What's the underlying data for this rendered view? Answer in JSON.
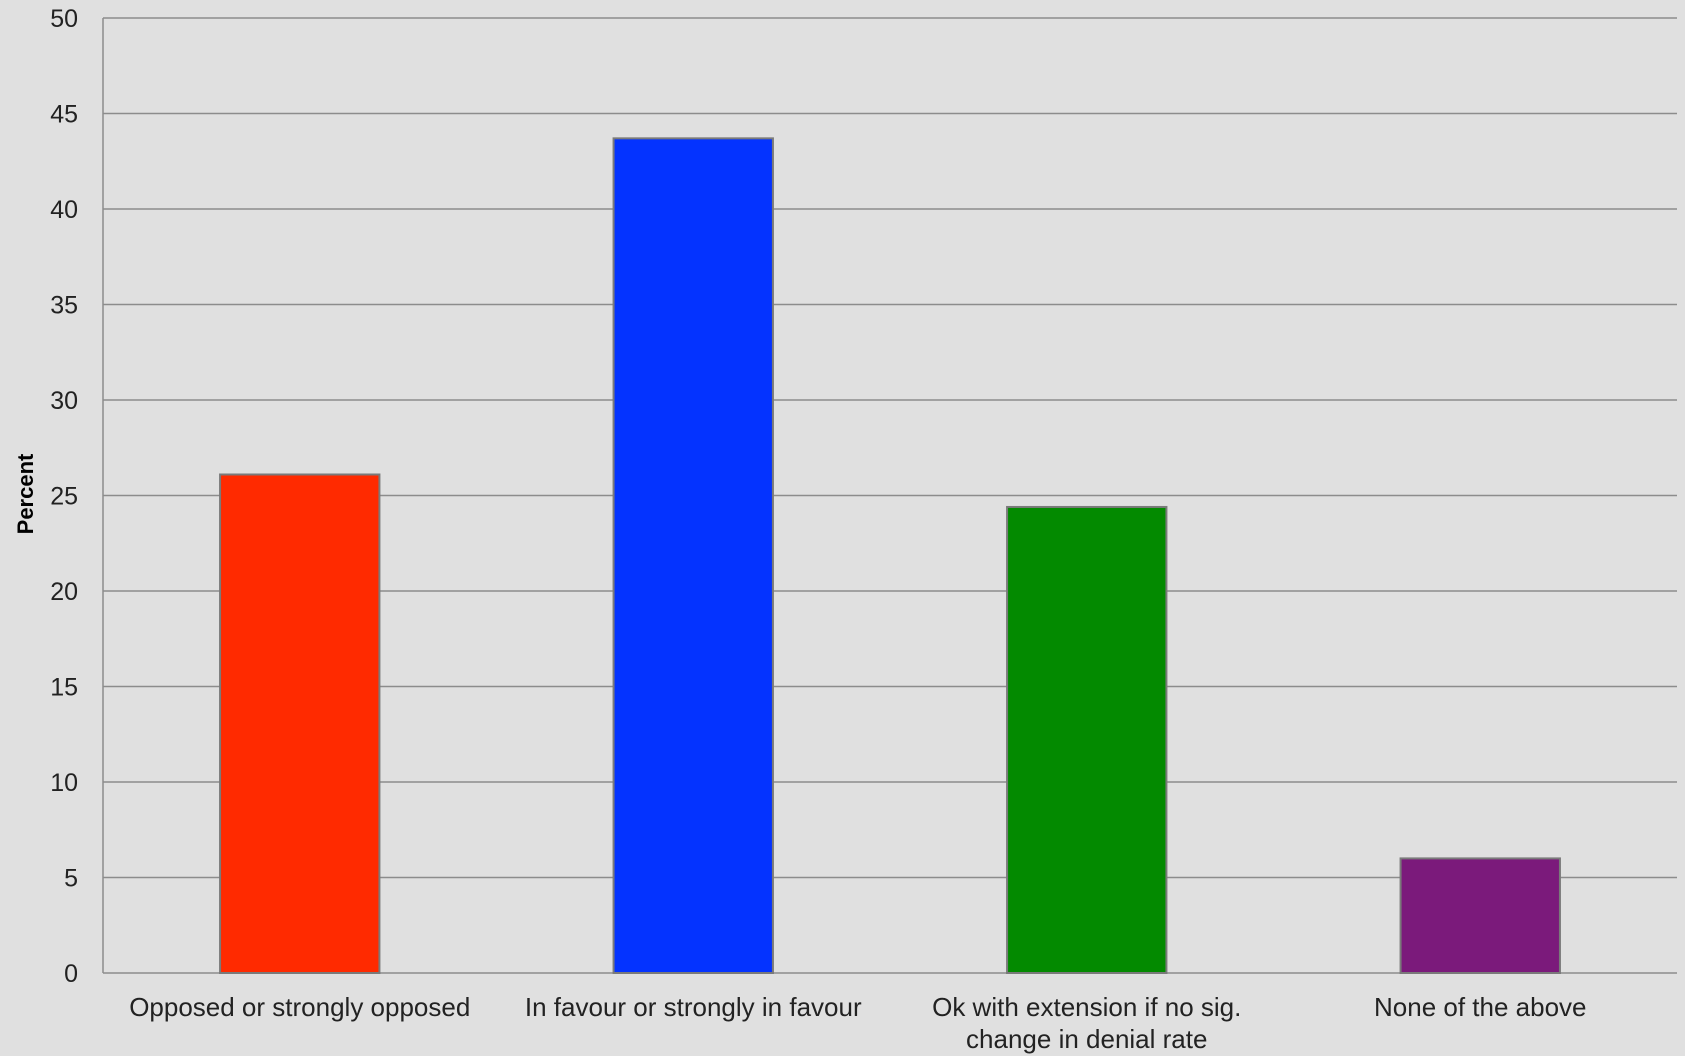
{
  "chart_data": {
    "type": "bar",
    "title": "",
    "xlabel": "",
    "ylabel": "Percent",
    "ylim": [
      0,
      50
    ],
    "yticks": [
      0,
      5,
      10,
      15,
      20,
      25,
      30,
      35,
      40,
      45,
      50
    ],
    "grid": true,
    "legend": "none",
    "categories": [
      [
        "Opposed or strongly opposed"
      ],
      [
        "In favour or strongly in favour"
      ],
      [
        "Ok with extension if no sig.",
        "change in denial rate"
      ],
      [
        "None of the above"
      ]
    ],
    "values": [
      26.1,
      43.7,
      24.4,
      6.0
    ],
    "colors": [
      "#ff2a00",
      "#0433ff",
      "#038a00",
      "#7b1a7b"
    ]
  }
}
